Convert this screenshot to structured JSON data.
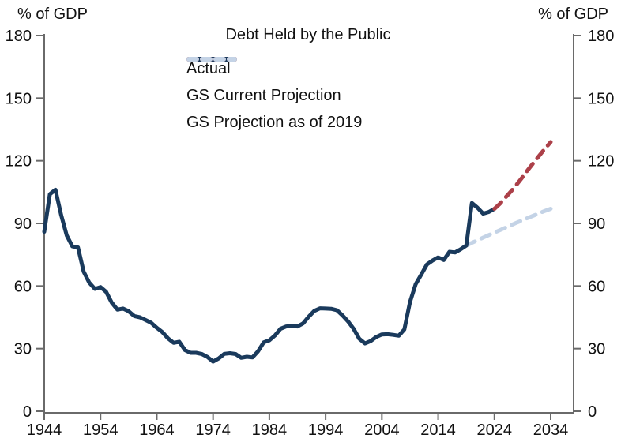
{
  "header": {
    "left_unit": "% of GDP",
    "right_unit": "% of GDP"
  },
  "chart_data": {
    "type": "line",
    "title": "Debt Held by the Public",
    "grid": false,
    "legend_position": "top-center",
    "axis_color": "#6A6A6A",
    "text_color": "#111111",
    "x_axis": {
      "min": 1944,
      "max": 2034,
      "ticks": [
        1944,
        1954,
        1964,
        1974,
        1984,
        1994,
        2004,
        2014,
        2024,
        2034
      ]
    },
    "y_axis": {
      "min": 0,
      "max": 180,
      "ticks": [
        0,
        30,
        60,
        90,
        120,
        150,
        180
      ],
      "unit": "% of GDP",
      "sides": "both"
    },
    "series": [
      {
        "name": "Actual",
        "color": "#1A3A5C",
        "style": "solid",
        "points": [
          [
            1944,
            86.0
          ],
          [
            1945,
            104.0
          ],
          [
            1946,
            106.1
          ],
          [
            1947,
            94.0
          ],
          [
            1948,
            84.2
          ],
          [
            1949,
            79.0
          ],
          [
            1950,
            78.5
          ],
          [
            1951,
            66.9
          ],
          [
            1952,
            61.6
          ],
          [
            1953,
            58.6
          ],
          [
            1954,
            59.5
          ],
          [
            1955,
            57.2
          ],
          [
            1956,
            52.0
          ],
          [
            1957,
            48.7
          ],
          [
            1958,
            49.2
          ],
          [
            1959,
            47.9
          ],
          [
            1960,
            45.6
          ],
          [
            1961,
            45.0
          ],
          [
            1962,
            43.7
          ],
          [
            1963,
            42.4
          ],
          [
            1964,
            40.0
          ],
          [
            1965,
            37.9
          ],
          [
            1966,
            34.9
          ],
          [
            1967,
            32.8
          ],
          [
            1968,
            33.3
          ],
          [
            1969,
            29.3
          ],
          [
            1970,
            28.0
          ],
          [
            1971,
            28.0
          ],
          [
            1972,
            27.4
          ],
          [
            1973,
            26.0
          ],
          [
            1974,
            23.8
          ],
          [
            1975,
            25.3
          ],
          [
            1976,
            27.5
          ],
          [
            1977,
            27.8
          ],
          [
            1978,
            27.4
          ],
          [
            1979,
            25.6
          ],
          [
            1980,
            26.1
          ],
          [
            1981,
            25.8
          ],
          [
            1982,
            28.7
          ],
          [
            1983,
            33.0
          ],
          [
            1984,
            34.0
          ],
          [
            1985,
            36.3
          ],
          [
            1986,
            39.5
          ],
          [
            1987,
            40.6
          ],
          [
            1988,
            40.9
          ],
          [
            1989,
            40.6
          ],
          [
            1990,
            42.1
          ],
          [
            1991,
            45.3
          ],
          [
            1992,
            48.1
          ],
          [
            1993,
            49.3
          ],
          [
            1994,
            49.2
          ],
          [
            1995,
            49.1
          ],
          [
            1996,
            48.4
          ],
          [
            1997,
            45.9
          ],
          [
            1998,
            43.0
          ],
          [
            1999,
            39.4
          ],
          [
            2000,
            34.7
          ],
          [
            2001,
            32.5
          ],
          [
            2002,
            33.6
          ],
          [
            2003,
            35.6
          ],
          [
            2004,
            36.8
          ],
          [
            2005,
            36.9
          ],
          [
            2006,
            36.6
          ],
          [
            2007,
            36.2
          ],
          [
            2008,
            39.2
          ],
          [
            2009,
            52.3
          ],
          [
            2010,
            60.9
          ],
          [
            2011,
            65.5
          ],
          [
            2012,
            70.3
          ],
          [
            2013,
            72.2
          ],
          [
            2014,
            73.7
          ],
          [
            2015,
            72.5
          ],
          [
            2016,
            76.4
          ],
          [
            2017,
            76.1
          ],
          [
            2018,
            77.6
          ],
          [
            2019,
            79.4
          ],
          [
            2020,
            99.8
          ],
          [
            2021,
            97.5
          ],
          [
            2022,
            94.7
          ],
          [
            2023,
            95.5
          ],
          [
            2024,
            97.0
          ]
        ]
      },
      {
        "name": "GS Current Projection",
        "color": "#AC4049",
        "style": "dashed",
        "points": [
          [
            2024,
            97.0
          ],
          [
            2025,
            99.5
          ],
          [
            2026,
            102.5
          ],
          [
            2027,
            105.5
          ],
          [
            2028,
            108.8
          ],
          [
            2029,
            112.2
          ],
          [
            2030,
            115.8
          ],
          [
            2031,
            119.2
          ],
          [
            2032,
            122.6
          ],
          [
            2033,
            125.9
          ],
          [
            2034,
            129.0
          ]
        ]
      },
      {
        "name": "GS Projection as of 2019",
        "color": "#C4D3E6",
        "style": "dashed",
        "points": [
          [
            2019,
            79.4
          ],
          [
            2020,
            80.7
          ],
          [
            2021,
            81.9
          ],
          [
            2022,
            83.2
          ],
          [
            2023,
            84.4
          ],
          [
            2024,
            85.6
          ],
          [
            2025,
            86.8
          ],
          [
            2026,
            88.0
          ],
          [
            2027,
            89.2
          ],
          [
            2028,
            90.4
          ],
          [
            2029,
            91.5
          ],
          [
            2030,
            92.7
          ],
          [
            2031,
            93.8
          ],
          [
            2032,
            94.9
          ],
          [
            2033,
            96.0
          ],
          [
            2034,
            97.0
          ]
        ]
      }
    ]
  }
}
